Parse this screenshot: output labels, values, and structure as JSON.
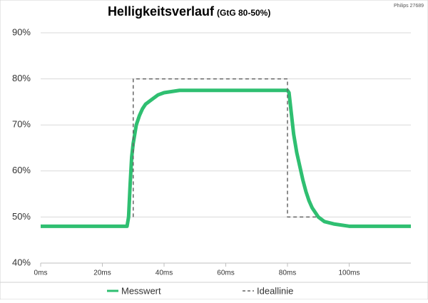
{
  "chart_data": {
    "type": "line",
    "title": "Helligkeitsverlauf",
    "subtitle": "(GtG 80-50%)",
    "annotation": "Philips 27689",
    "xlim": [
      0,
      120
    ],
    "xticks": [
      {
        "value": 0,
        "label": "0ms"
      },
      {
        "value": 20,
        "label": "20ms"
      },
      {
        "value": 40,
        "label": "40ms"
      },
      {
        "value": 60,
        "label": "60ms"
      },
      {
        "value": 80,
        "label": "80ms"
      },
      {
        "value": 100,
        "label": "100ms"
      }
    ],
    "ylim": [
      40,
      90
    ],
    "yticks": [
      {
        "value": 40,
        "label": "40%"
      },
      {
        "value": 50,
        "label": "50%"
      },
      {
        "value": 60,
        "label": "60%"
      },
      {
        "value": 70,
        "label": "70%"
      },
      {
        "value": 80,
        "label": "80%"
      },
      {
        "value": 90,
        "label": "90%"
      }
    ],
    "grid": true,
    "legend": "bottom",
    "series": [
      {
        "name": "Messwert",
        "color": "#2fbf71",
        "style": "solid",
        "x": [
          0,
          5,
          10,
          15,
          20,
          25,
          28,
          28.5,
          29,
          29.5,
          30,
          31,
          32,
          33,
          34,
          36,
          38,
          40,
          45,
          50,
          55,
          60,
          65,
          70,
          75,
          80,
          80.5,
          81,
          81.5,
          82,
          83,
          84,
          85,
          86,
          87,
          88,
          90,
          92,
          95,
          100,
          105,
          110,
          115,
          120
        ],
        "values": [
          48,
          48,
          48,
          48,
          48,
          48,
          48,
          50,
          57,
          63,
          66,
          70,
          72,
          73.5,
          74.5,
          75.5,
          76.5,
          77,
          77.5,
          77.5,
          77.5,
          77.5,
          77.5,
          77.5,
          77.5,
          77.5,
          77,
          74,
          71,
          68,
          64,
          61,
          58,
          55.5,
          53.5,
          52,
          50,
          49,
          48.5,
          48,
          48,
          48,
          48,
          48
        ]
      },
      {
        "name": "Ideallinie",
        "color": "#666666",
        "style": "dashed",
        "x": [
          30,
          30,
          80,
          80,
          90
        ],
        "values": [
          50,
          80,
          80,
          50,
          50
        ]
      }
    ]
  }
}
